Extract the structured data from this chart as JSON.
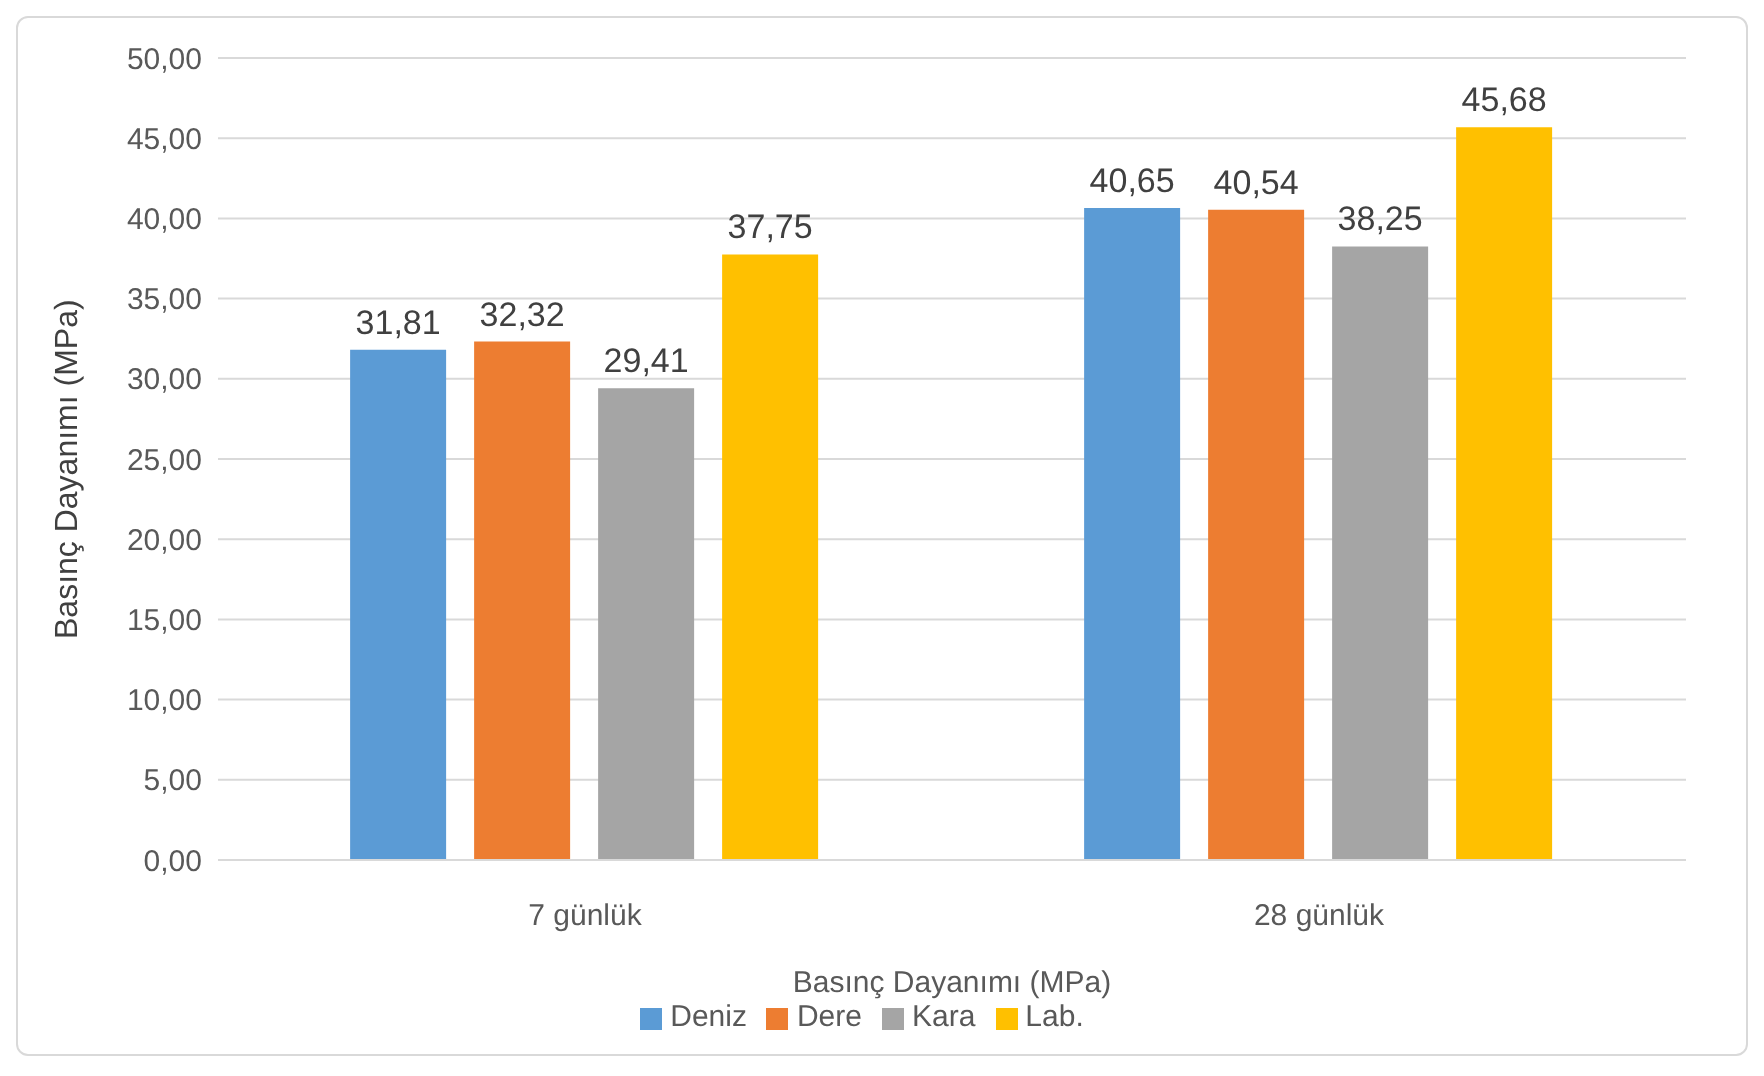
{
  "chart_data": {
    "type": "bar",
    "ylabel": "Basınç Dayanımı (MPa)",
    "xlabel": "Basınç Dayanımı (MPa)",
    "categories": [
      "7 günlük",
      "28 günlük"
    ],
    "series": [
      {
        "name": "Deniz",
        "color": "#5b9bd5",
        "values": [
          31.81,
          40.65
        ],
        "value_labels": [
          "31,81",
          "40,65"
        ]
      },
      {
        "name": "Dere",
        "color": "#ed7d31",
        "values": [
          32.32,
          40.54
        ],
        "value_labels": [
          "32,32",
          "40,54"
        ]
      },
      {
        "name": "Kara",
        "color": "#a5a5a5",
        "values": [
          29.41,
          38.25
        ],
        "value_labels": [
          "29,41",
          "38,25"
        ]
      },
      {
        "name": "Lab.",
        "color": "#ffc000",
        "values": [
          37.75,
          45.68
        ],
        "value_labels": [
          "37,75",
          "45,68"
        ]
      }
    ],
    "ylim": [
      0,
      50
    ],
    "yticks": [
      {
        "value": 0,
        "label": "0,00"
      },
      {
        "value": 5,
        "label": "5,00"
      },
      {
        "value": 10,
        "label": "10,00"
      },
      {
        "value": 15,
        "label": "15,00"
      },
      {
        "value": 20,
        "label": "20,00"
      },
      {
        "value": 25,
        "label": "25,00"
      },
      {
        "value": 30,
        "label": "30,00"
      },
      {
        "value": 35,
        "label": "35,00"
      },
      {
        "value": 40,
        "label": "40,00"
      },
      {
        "value": 45,
        "label": "45,00"
      },
      {
        "value": 50,
        "label": "50,00"
      }
    ],
    "grid": "y",
    "legend": "bottom"
  }
}
